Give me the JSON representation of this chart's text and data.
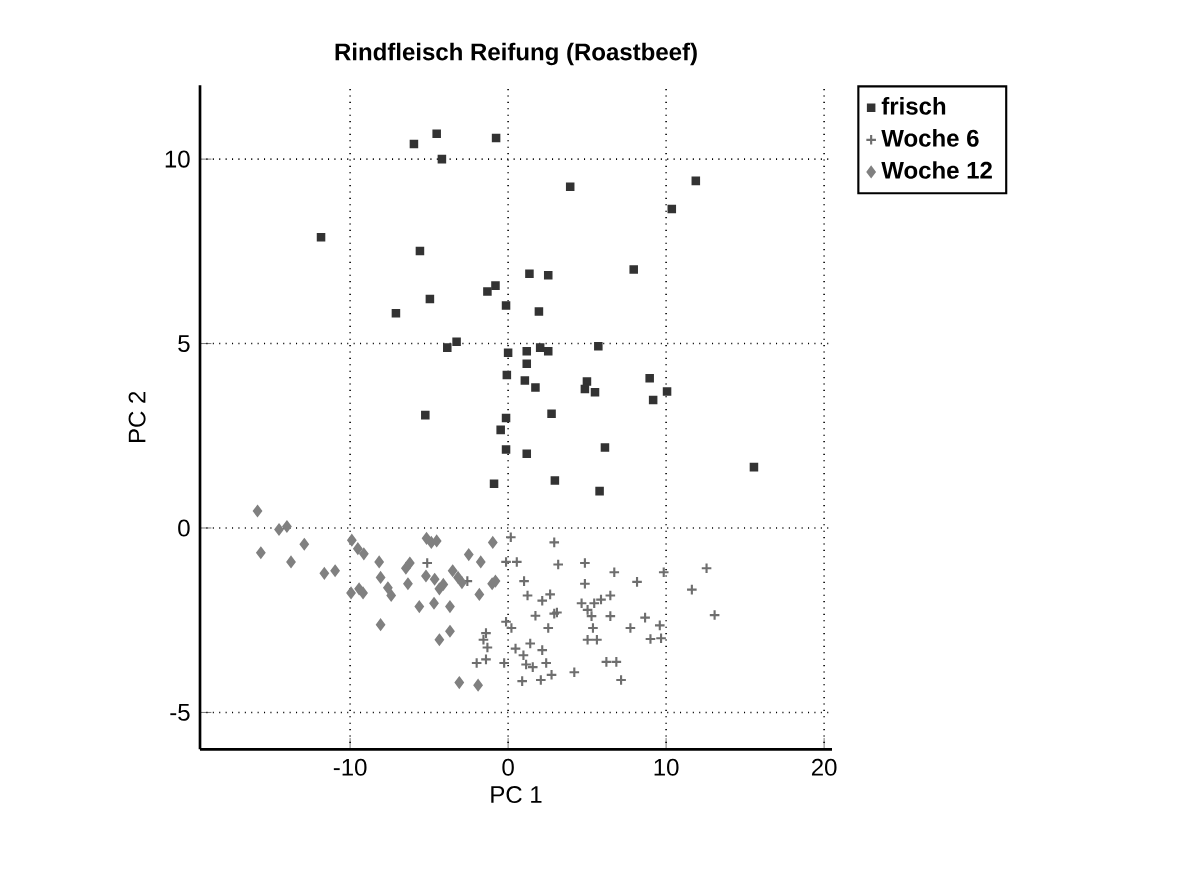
{
  "chart_data": {
    "type": "scatter",
    "title": "Rindfleisch Reifung (Roastbeef)",
    "xlabel": "PC 1",
    "ylabel": "PC 2",
    "xlim": [
      -19.5,
      20.5
    ],
    "ylim": [
      -6,
      12
    ],
    "xticks": [
      -10,
      0,
      10,
      20
    ],
    "yticks": [
      -5,
      0,
      5,
      10
    ],
    "grid": true,
    "legend": "top right",
    "series": [
      {
        "name": "frisch",
        "color": "#333333",
        "marker": "square",
        "x": [
          -5.96,
          -4.52,
          -4.19,
          -0.76,
          3.93,
          11.88,
          10.36,
          -11.84,
          -5.58,
          7.95,
          1.35,
          2.54,
          -1.31,
          -0.8,
          -4.95,
          -0.13,
          -7.1,
          1.95,
          -3.85,
          -3.26,
          0.0,
          1.18,
          2.03,
          2.54,
          5.71,
          1.18,
          -0.08,
          1.06,
          1.73,
          4.99,
          4.86,
          5.5,
          8.96,
          10.06,
          9.18,
          -5.24,
          2.75,
          -0.13,
          -0.47,
          -0.13,
          1.18,
          6.13,
          -0.89,
          2.96,
          5.79,
          15.56
        ],
        "values": [
          10.41,
          10.69,
          10.0,
          10.57,
          9.25,
          9.41,
          8.65,
          7.88,
          7.51,
          7.01,
          6.89,
          6.85,
          6.41,
          6.57,
          6.21,
          6.03,
          5.82,
          5.87,
          4.89,
          5.05,
          4.75,
          4.79,
          4.89,
          4.79,
          4.93,
          4.45,
          4.15,
          4.0,
          3.81,
          3.97,
          3.77,
          3.68,
          4.06,
          3.7,
          3.47,
          3.06,
          3.1,
          2.98,
          2.66,
          2.13,
          2.01,
          2.18,
          1.2,
          1.29,
          1.0,
          1.65
        ]
      },
      {
        "name": "Woche 6",
        "color": "#6e6e6e",
        "marker": "cross",
        "x": [
          -5.12,
          -2.58,
          0.17,
          -0.13,
          0.55,
          2.92,
          3.17,
          4.86,
          4.86,
          6.72,
          8.16,
          9.85,
          12.56,
          11.63,
          13.07,
          1.01,
          1.23,
          2.16,
          2.66,
          2.92,
          1.73,
          3.09,
          -0.13,
          0.21,
          2.54,
          4.65,
          5.03,
          5.45,
          5.88,
          6.47,
          5.28,
          6.47,
          5.37,
          5.03,
          5.62,
          7.74,
          8.67,
          9.6,
          9.01,
          9.68,
          -1.4,
          -1.56,
          -1.31,
          -1.99,
          -1.4,
          -0.25,
          0.47,
          0.97,
          1.14,
          1.4,
          2.16,
          2.41,
          0.89,
          2.07,
          2.75,
          4.19,
          6.22,
          6.85,
          7.15,
          1.56
        ],
        "values": [
          -0.95,
          -1.44,
          -0.25,
          -0.92,
          -0.92,
          -0.39,
          -0.99,
          -0.95,
          -1.51,
          -1.2,
          -1.46,
          -1.2,
          -1.09,
          -1.67,
          -2.36,
          -1.44,
          -1.83,
          -1.97,
          -1.8,
          -2.32,
          -2.38,
          -2.29,
          -2.54,
          -2.71,
          -2.71,
          -2.04,
          -2.22,
          -2.04,
          -1.94,
          -1.83,
          -2.39,
          -2.39,
          -2.71,
          -3.03,
          -3.03,
          -2.71,
          -2.43,
          -2.64,
          -3.01,
          -2.99,
          -2.85,
          -3.03,
          -3.24,
          -3.66,
          -3.56,
          -3.66,
          -3.27,
          -3.45,
          -3.7,
          -3.13,
          -3.31,
          -3.66,
          -4.15,
          -4.12,
          -3.98,
          -3.91,
          -3.63,
          -3.63,
          -4.12,
          -3.77
        ]
      },
      {
        "name": "Woche 12",
        "color": "#808080",
        "marker": "diamond",
        "x": [
          -15.86,
          -15.65,
          -14.5,
          -14.0,
          -13.74,
          -12.9,
          -11.63,
          -10.95,
          -9.89,
          -9.51,
          -9.13,
          -9.94,
          -9.43,
          -9.18,
          -8.16,
          -8.07,
          -7.61,
          -7.4,
          -8.07,
          -6.47,
          -6.22,
          -6.34,
          -5.16,
          -4.86,
          -4.52,
          -5.2,
          -4.65,
          -5.62,
          -4.69,
          -4.35,
          -4.1,
          -3.51,
          -3.17,
          -2.92,
          -3.68,
          -4.35,
          -3.68,
          -2.49,
          -1.73,
          -1.82,
          -0.97,
          -0.8,
          -1.01,
          -3.09,
          -1.9
        ],
        "values": [
          0.46,
          -0.67,
          -0.04,
          0.04,
          -0.92,
          -0.44,
          -1.23,
          -1.16,
          -0.33,
          -0.56,
          -0.7,
          -1.76,
          -1.65,
          -1.76,
          -0.92,
          -1.34,
          -1.62,
          -1.83,
          -2.62,
          -1.09,
          -0.95,
          -1.51,
          -0.28,
          -0.39,
          -0.35,
          -1.3,
          -1.39,
          -2.13,
          -2.04,
          -1.65,
          -1.53,
          -1.16,
          -1.34,
          -1.48,
          -2.13,
          -3.03,
          -2.8,
          -0.72,
          -0.92,
          -1.8,
          -0.39,
          -1.44,
          -1.51,
          -4.19,
          -4.26
        ]
      }
    ]
  }
}
